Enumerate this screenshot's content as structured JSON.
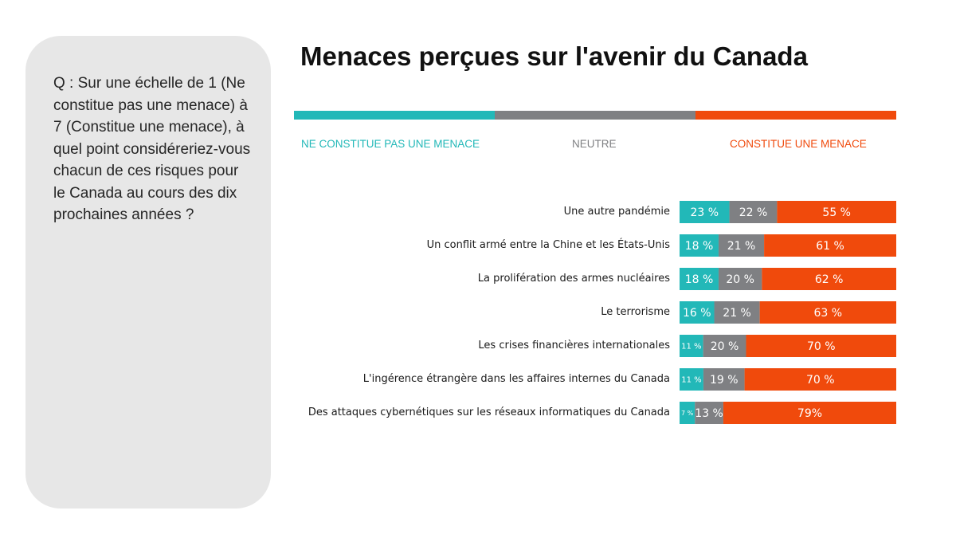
{
  "question": {
    "text": "Q : Sur une échelle de 1 (Ne constitue pas une menace) à 7 (Constitue une menace), à quel point considéreriez-vous chacun de ces risques pour le Canada au cours des dix prochaines années ?"
  },
  "legend": {
    "not_threat": "NE CONSTITUE PAS UNE MENACE",
    "neutral": "NEUTRE",
    "threat": "CONSTITUE UNE MENACE"
  },
  "colors": {
    "not_threat": "#22b8b8",
    "neutral": "#7f8083",
    "threat": "#f04a0c"
  },
  "chart_data": {
    "type": "bar",
    "stacked": true,
    "orientation": "horizontal",
    "normalized": true,
    "title": "Menaces perçues sur l'avenir du Canada",
    "categories": [
      "Une autre pandémie",
      "Un conflit armé entre la Chine et les États-Unis",
      "La prolifération des armes nucléaires",
      "Le terrorisme",
      "Les crises financières internationales",
      "L'ingérence étrangère dans les affaires internes du Canada",
      "Des attaques cybernétiques sur les réseaux informatiques du Canada"
    ],
    "series": [
      {
        "name": "NE CONSTITUE PAS UNE MENACE",
        "values": [
          23,
          18,
          18,
          16,
          11,
          11,
          7
        ],
        "labels": [
          "23 %",
          "18 %",
          "18 %",
          "16 %",
          "11 %",
          "11 %",
          "7 %"
        ]
      },
      {
        "name": "NEUTRE",
        "values": [
          22,
          21,
          20,
          21,
          20,
          19,
          13
        ],
        "labels": [
          "22 %",
          "21 %",
          "20 %",
          "21 %",
          "20 %",
          "19 %",
          "13 %"
        ]
      },
      {
        "name": "CONSTITUE UNE MENACE",
        "values": [
          55,
          61,
          62,
          63,
          70,
          70,
          79
        ],
        "labels": [
          "55 %",
          "61 %",
          "62 %",
          "63 %",
          "70 %",
          "70 %",
          "79%"
        ]
      }
    ]
  }
}
